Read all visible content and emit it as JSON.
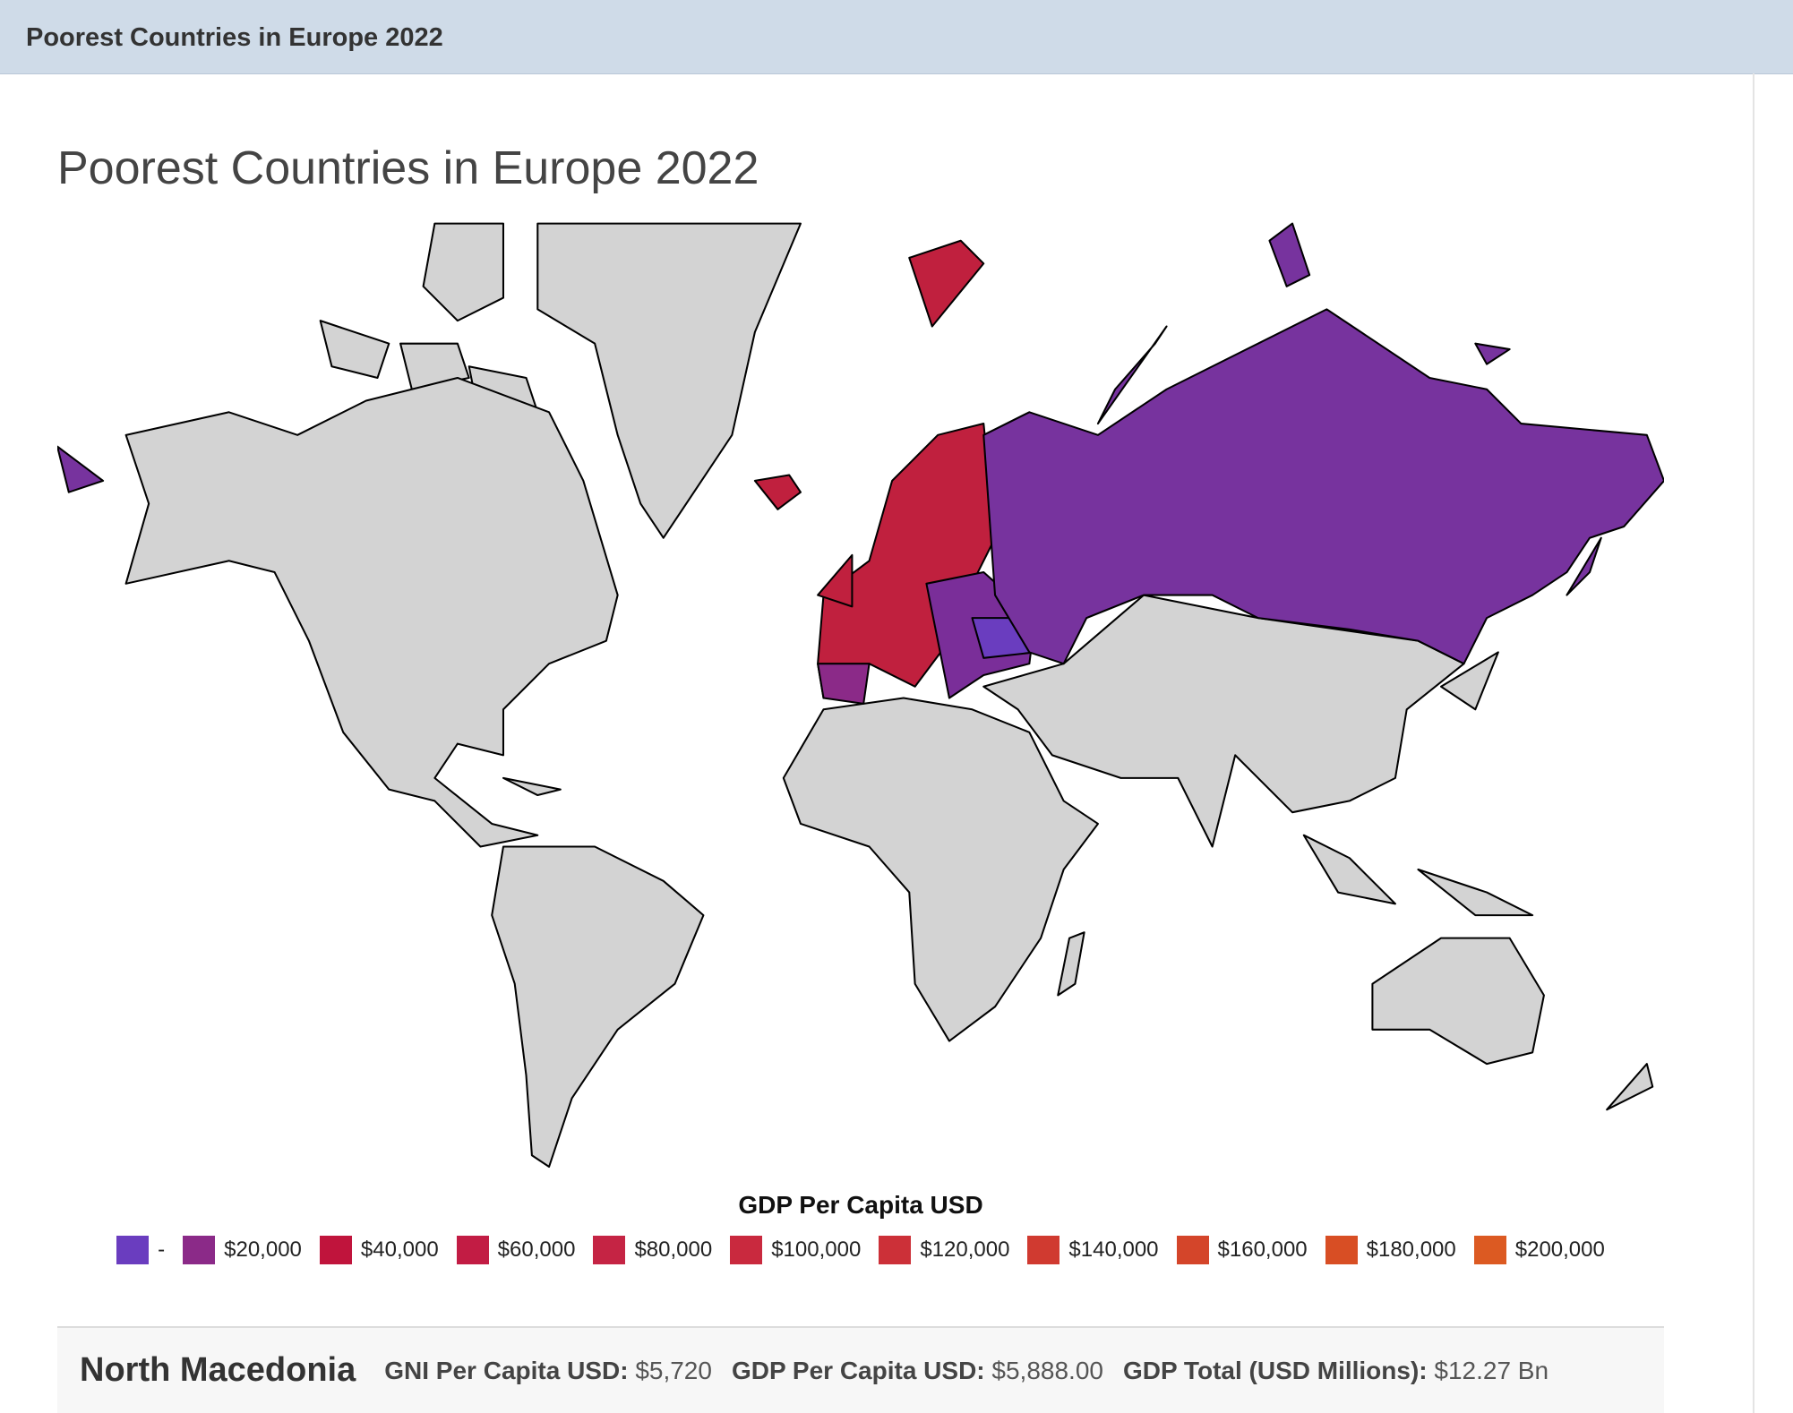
{
  "header": {
    "title": "Poorest Countries in Europe 2022"
  },
  "title": "Poorest Countries in Europe 2022",
  "legend": {
    "title": "GDP Per Capita USD",
    "items": [
      {
        "label": "-",
        "color": "#6a3dbf"
      },
      {
        "label": "$20,000",
        "color": "#8b2a88"
      },
      {
        "label": "$40,000",
        "color": "#c0143c"
      },
      {
        "label": "$60,000",
        "color": "#c21c44"
      },
      {
        "label": "$80,000",
        "color": "#c52444"
      },
      {
        "label": "$100,000",
        "color": "#c9293e"
      },
      {
        "label": "$120,000",
        "color": "#cc3038"
      },
      {
        "label": "$140,000",
        "color": "#d03a30"
      },
      {
        "label": "$160,000",
        "color": "#d4452a"
      },
      {
        "label": "$180,000",
        "color": "#d84e24"
      },
      {
        "label": "$200,000",
        "color": "#dc5a22"
      }
    ]
  },
  "info": {
    "country": "North Macedonia",
    "stats": [
      {
        "label": "GNI Per Capita USD:",
        "value": "$5,720"
      },
      {
        "label": "GDP Per Capita USD:",
        "value": "$5,888.00"
      },
      {
        "label": "GDP Total (USD Millions):",
        "value": "$12.27 Bn"
      }
    ]
  }
}
